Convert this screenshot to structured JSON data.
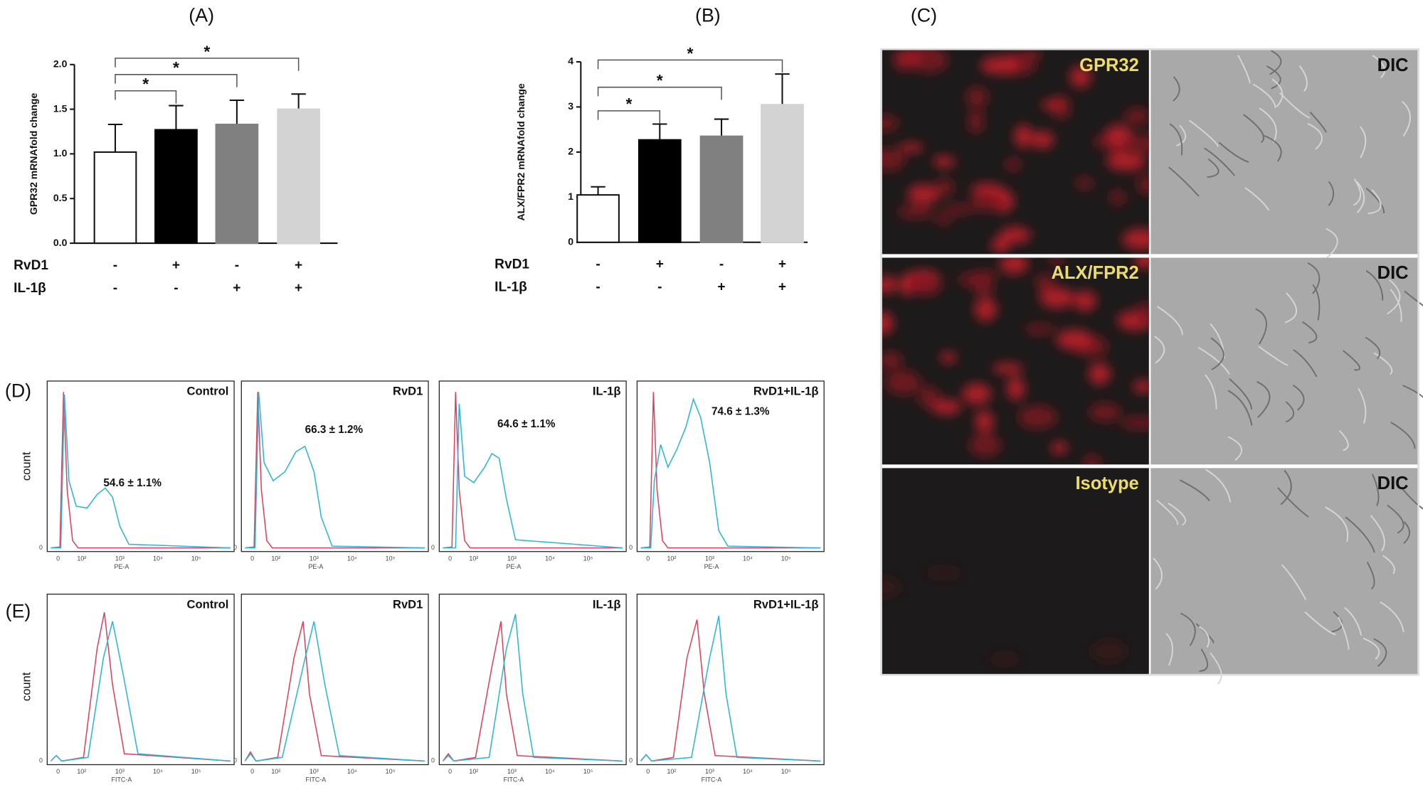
{
  "chart_data": [
    {
      "type": "bar",
      "panel": "(A)",
      "y_label": "GPR32 mRNAfold change",
      "categories": [
        null,
        null,
        null,
        null
      ],
      "values": [
        1.02,
        1.27,
        1.33,
        1.5
      ],
      "errors": [
        0.31,
        0.27,
        0.27,
        0.17
      ],
      "colors": [
        "#ffffff",
        "#000000",
        "#808080",
        "#d3d3d3"
      ],
      "ylim": [
        0,
        2.0
      ],
      "yticks": [
        {
          "value": 0,
          "label": "0.0"
        },
        {
          "value": 0.5,
          "label": "0.5"
        },
        {
          "value": 1,
          "label": "1.0"
        },
        {
          "value": 1.5,
          "label": "1.5"
        },
        {
          "value": 2,
          "label": "2.0"
        }
      ],
      "conditions": [
        {
          "name": "RvD1",
          "signs": [
            "-",
            "+",
            "-",
            "+"
          ]
        },
        {
          "name": "IL-1β",
          "signs": [
            "-",
            "-",
            "+",
            "+"
          ]
        }
      ],
      "significance": [
        {
          "from": 0,
          "to": 1,
          "label": "*"
        },
        {
          "from": 0,
          "to": 2,
          "label": "*"
        },
        {
          "from": 0,
          "to": 3,
          "label": "*"
        }
      ]
    },
    {
      "type": "bar",
      "panel": "(B)",
      "y_label": "ALX/FPR2 mRNAfold change",
      "categories": [
        null,
        null,
        null,
        null
      ],
      "values": [
        1.05,
        2.27,
        2.35,
        3.05
      ],
      "errors": [
        0.18,
        0.35,
        0.38,
        0.68
      ],
      "colors": [
        "#ffffff",
        "#000000",
        "#808080",
        "#d3d3d3"
      ],
      "ylim": [
        0,
        4
      ],
      "yticks": [
        0,
        1,
        2,
        3,
        4
      ],
      "conditions": [
        {
          "name": "RvD1",
          "signs": [
            "-",
            "+",
            "-",
            "+"
          ]
        },
        {
          "name": "IL-1β",
          "signs": [
            "-",
            "-",
            "+",
            "+"
          ]
        }
      ],
      "significance": [
        {
          "from": 0,
          "to": 1,
          "label": "*"
        },
        {
          "from": 0,
          "to": 2,
          "label": "*"
        },
        {
          "from": 0,
          "to": 3,
          "label": "*"
        }
      ]
    }
  ],
  "panel_c": {
    "label": "(C)",
    "rows": [
      {
        "stain": "GPR32",
        "dic": "DIC"
      },
      {
        "stain": "ALX/FPR2",
        "dic": "DIC"
      },
      {
        "stain": "Isotype",
        "dic": "DIC"
      }
    ]
  },
  "panel_d": {
    "label": "(D)",
    "y_label": "count",
    "x_label": "PE-A",
    "y_tick": "0",
    "x_ticks": [
      "0",
      "10²",
      "10³",
      "10⁴",
      "10⁵"
    ],
    "plots": [
      {
        "title": "Control",
        "annotation": "54.6 ± 1.1%"
      },
      {
        "title": "RvD1",
        "annotation": "66.3 ± 1.2%"
      },
      {
        "title": "IL-1β",
        "annotation": "64.6 ± 1.1%"
      },
      {
        "title": "RvD1+IL-1β",
        "annotation": "74.6 ± 1.3%"
      }
    ]
  },
  "panel_e": {
    "label": "(E)",
    "y_label": "count",
    "x_label": "FITC-A",
    "y_tick": "0",
    "x_ticks": [
      "0",
      "10²",
      "10³",
      "10⁴",
      "10⁵"
    ],
    "plots": [
      {
        "title": "Control"
      },
      {
        "title": "RvD1"
      },
      {
        "title": "IL-1β"
      },
      {
        "title": "RvD1+IL-1β"
      }
    ]
  }
}
